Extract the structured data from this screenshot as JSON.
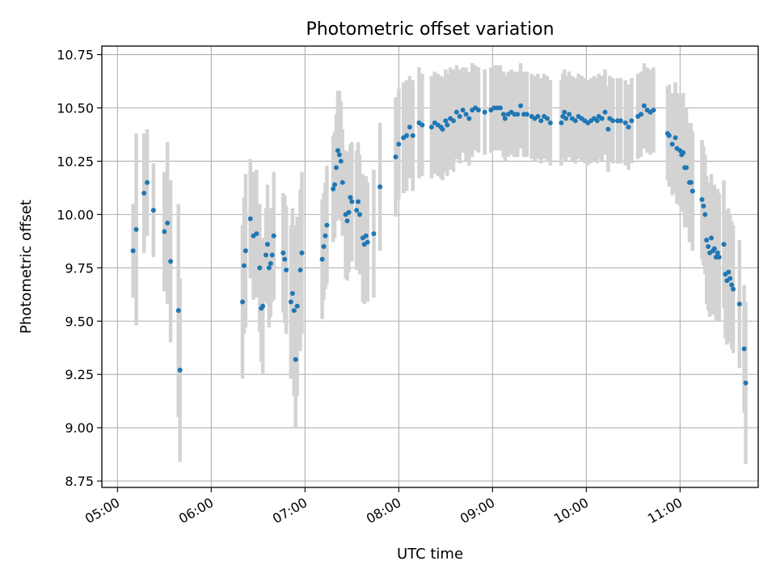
{
  "chart_data": {
    "type": "scatter",
    "title": "Photometric offset variation",
    "xlabel": "UTC time",
    "ylabel": "Photometric offset",
    "xlim": [
      "04:50",
      "11:50"
    ],
    "ylim": [
      8.72,
      10.79
    ],
    "x_ticks": [
      "05:00",
      "06:00",
      "07:00",
      "08:00",
      "09:00",
      "10:00",
      "11:00"
    ],
    "y_ticks": [
      "8.75",
      "9.00",
      "9.25",
      "9.50",
      "9.75",
      "10.00",
      "10.25",
      "10.50",
      "10.75"
    ],
    "grid": true,
    "colors": {
      "points": "#1f77b4",
      "error_bars": "#d3d3d3",
      "grid": "#b0b0b0"
    },
    "series": [
      {
        "points": [
          [
            "05:10",
            9.83,
            0.22
          ],
          [
            "05:12",
            9.93,
            0.45
          ],
          [
            "05:17",
            10.1,
            0.28
          ],
          [
            "05:19",
            10.15,
            0.25
          ],
          [
            "05:23",
            10.02,
            0.22
          ],
          [
            "05:30",
            9.92,
            0.28
          ],
          [
            "05:32",
            9.96,
            0.38
          ],
          [
            "05:34",
            9.78,
            0.38
          ],
          [
            "05:39",
            9.55,
            0.5
          ],
          [
            "05:40",
            9.27,
            0.43
          ],
          [
            "06:20",
            9.59,
            0.36
          ],
          [
            "06:21",
            9.76,
            0.32
          ],
          [
            "06:22",
            9.83,
            0.36
          ],
          [
            "06:25",
            9.98,
            0.28
          ],
          [
            "06:27",
            9.9,
            0.3
          ],
          [
            "06:29",
            9.91,
            0.3
          ],
          [
            "06:31",
            9.75,
            0.3
          ],
          [
            "06:32",
            9.56,
            0.25
          ],
          [
            "06:33",
            9.57,
            0.32
          ],
          [
            "06:35",
            9.81,
            0.22
          ],
          [
            "06:36",
            9.86,
            0.28
          ],
          [
            "06:37",
            9.75,
            0.28
          ],
          [
            "06:38",
            9.77,
            0.25
          ],
          [
            "06:39",
            9.81,
            0.22
          ],
          [
            "06:40",
            9.9,
            0.3
          ],
          [
            "06:46",
            9.82,
            0.28
          ],
          [
            "06:47",
            9.79,
            0.3
          ],
          [
            "06:48",
            9.74,
            0.3
          ],
          [
            "06:51",
            9.59,
            0.36
          ],
          [
            "06:52",
            9.63,
            0.4
          ],
          [
            "06:53",
            9.55,
            0.4
          ],
          [
            "06:54",
            9.32,
            0.32
          ],
          [
            "06:55",
            9.57,
            0.42
          ],
          [
            "06:57",
            9.74,
            0.38
          ],
          [
            "06:58",
            9.82,
            0.38
          ],
          [
            "07:11",
            9.79,
            0.28
          ],
          [
            "07:12",
            9.85,
            0.25
          ],
          [
            "07:13",
            9.9,
            0.25
          ],
          [
            "07:14",
            9.95,
            0.28
          ],
          [
            "07:18",
            10.12,
            0.25
          ],
          [
            "07:19",
            10.14,
            0.25
          ],
          [
            "07:20",
            10.22,
            0.25
          ],
          [
            "07:21",
            10.3,
            0.28
          ],
          [
            "07:22",
            10.28,
            0.3
          ],
          [
            "07:23",
            10.25,
            0.28
          ],
          [
            "07:24",
            10.15,
            0.25
          ],
          [
            "07:26",
            10.0,
            0.3
          ],
          [
            "07:27",
            9.97,
            0.28
          ],
          [
            "07:28",
            10.01,
            0.28
          ],
          [
            "07:29",
            10.08,
            0.25
          ],
          [
            "07:30",
            10.06,
            0.28
          ],
          [
            "07:33",
            10.02,
            0.28
          ],
          [
            "07:34",
            10.06,
            0.28
          ],
          [
            "07:35",
            10.0,
            0.28
          ],
          [
            "07:37",
            9.89,
            0.3
          ],
          [
            "07:38",
            9.86,
            0.28
          ],
          [
            "07:39",
            9.9,
            0.28
          ],
          [
            "07:40",
            9.87,
            0.28
          ],
          [
            "07:44",
            9.91,
            0.3
          ],
          [
            "07:48",
            10.13,
            0.3
          ],
          [
            "07:58",
            10.27,
            0.28
          ],
          [
            "08:00",
            10.33,
            0.26
          ],
          [
            "08:03",
            10.36,
            0.26
          ],
          [
            "08:05",
            10.37,
            0.26
          ],
          [
            "08:07",
            10.41,
            0.24
          ],
          [
            "08:09",
            10.37,
            0.26
          ],
          [
            "08:13",
            10.43,
            0.26
          ],
          [
            "08:15",
            10.42,
            0.24
          ],
          [
            "08:21",
            10.41,
            0.24
          ],
          [
            "08:23",
            10.43,
            0.24
          ],
          [
            "08:25",
            10.42,
            0.24
          ],
          [
            "08:27",
            10.41,
            0.24
          ],
          [
            "08:28",
            10.4,
            0.24
          ],
          [
            "08:30",
            10.44,
            0.24
          ],
          [
            "08:31",
            10.42,
            0.24
          ],
          [
            "08:33",
            10.45,
            0.24
          ],
          [
            "08:35",
            10.44,
            0.24
          ],
          [
            "08:37",
            10.48,
            0.22
          ],
          [
            "08:39",
            10.46,
            0.22
          ],
          [
            "08:41",
            10.49,
            0.2
          ],
          [
            "08:43",
            10.47,
            0.22
          ],
          [
            "08:45",
            10.45,
            0.22
          ],
          [
            "08:47",
            10.49,
            0.22
          ],
          [
            "08:49",
            10.5,
            0.2
          ],
          [
            "08:51",
            10.49,
            0.2
          ],
          [
            "08:55",
            10.48,
            0.2
          ],
          [
            "08:59",
            10.49,
            0.2
          ],
          [
            "09:01",
            10.5,
            0.2
          ],
          [
            "09:03",
            10.5,
            0.2
          ],
          [
            "09:05",
            10.5,
            0.2
          ],
          [
            "09:07",
            10.47,
            0.2
          ],
          [
            "09:08",
            10.45,
            0.2
          ],
          [
            "09:10",
            10.47,
            0.2
          ],
          [
            "09:12",
            10.48,
            0.2
          ],
          [
            "09:14",
            10.47,
            0.2
          ],
          [
            "09:16",
            10.47,
            0.2
          ],
          [
            "09:18",
            10.51,
            0.2
          ],
          [
            "09:20",
            10.47,
            0.2
          ],
          [
            "09:22",
            10.47,
            0.2
          ],
          [
            "09:25",
            10.46,
            0.2
          ],
          [
            "09:27",
            10.45,
            0.2
          ],
          [
            "09:29",
            10.46,
            0.2
          ],
          [
            "09:31",
            10.44,
            0.2
          ],
          [
            "09:33",
            10.46,
            0.2
          ],
          [
            "09:35",
            10.45,
            0.2
          ],
          [
            "09:37",
            10.43,
            0.2
          ],
          [
            "09:44",
            10.43,
            0.2
          ],
          [
            "09:45",
            10.46,
            0.2
          ],
          [
            "09:46",
            10.48,
            0.2
          ],
          [
            "09:47",
            10.45,
            0.2
          ],
          [
            "09:49",
            10.47,
            0.2
          ],
          [
            "09:51",
            10.45,
            0.2
          ],
          [
            "09:53",
            10.44,
            0.2
          ],
          [
            "09:55",
            10.46,
            0.2
          ],
          [
            "09:57",
            10.45,
            0.2
          ],
          [
            "09:59",
            10.44,
            0.2
          ],
          [
            "10:01",
            10.43,
            0.2
          ],
          [
            "10:03",
            10.44,
            0.2
          ],
          [
            "10:05",
            10.45,
            0.2
          ],
          [
            "10:07",
            10.44,
            0.2
          ],
          [
            "10:08",
            10.46,
            0.2
          ],
          [
            "10:10",
            10.45,
            0.2
          ],
          [
            "10:12",
            10.48,
            0.2
          ],
          [
            "10:14",
            10.4,
            0.2
          ],
          [
            "10:15",
            10.45,
            0.2
          ],
          [
            "10:17",
            10.44,
            0.2
          ],
          [
            "10:20",
            10.44,
            0.2
          ],
          [
            "10:22",
            10.44,
            0.2
          ],
          [
            "10:25",
            10.43,
            0.2
          ],
          [
            "10:27",
            10.41,
            0.2
          ],
          [
            "10:29",
            10.44,
            0.2
          ],
          [
            "10:33",
            10.46,
            0.2
          ],
          [
            "10:35",
            10.47,
            0.2
          ],
          [
            "10:37",
            10.51,
            0.2
          ],
          [
            "10:39",
            10.49,
            0.2
          ],
          [
            "10:41",
            10.48,
            0.2
          ],
          [
            "10:43",
            10.49,
            0.2
          ],
          [
            "10:52",
            10.38,
            0.22
          ],
          [
            "10:53",
            10.37,
            0.24
          ],
          [
            "10:55",
            10.33,
            0.24
          ],
          [
            "10:57",
            10.36,
            0.26
          ],
          [
            "10:58",
            10.31,
            0.26
          ],
          [
            "11:00",
            10.3,
            0.26
          ],
          [
            "11:01",
            10.28,
            0.26
          ],
          [
            "11:02",
            10.29,
            0.28
          ],
          [
            "11:03",
            10.22,
            0.28
          ],
          [
            "11:04",
            10.22,
            0.28
          ],
          [
            "11:06",
            10.15,
            0.28
          ],
          [
            "11:07",
            10.15,
            0.28
          ],
          [
            "11:08",
            10.11,
            0.28
          ],
          [
            "11:14",
            10.07,
            0.28
          ],
          [
            "11:15",
            10.04,
            0.28
          ],
          [
            "11:16",
            10.0,
            0.28
          ],
          [
            "11:17",
            9.88,
            0.3
          ],
          [
            "11:18",
            9.85,
            0.3
          ],
          [
            "11:19",
            9.82,
            0.3
          ],
          [
            "11:20",
            9.89,
            0.3
          ],
          [
            "11:21",
            9.83,
            0.3
          ],
          [
            "11:22",
            9.84,
            0.3
          ],
          [
            "11:23",
            9.8,
            0.3
          ],
          [
            "11:24",
            9.82,
            0.3
          ],
          [
            "11:25",
            9.8,
            0.3
          ],
          [
            "11:28",
            9.86,
            0.3
          ],
          [
            "11:29",
            9.72,
            0.3
          ],
          [
            "11:30",
            9.69,
            0.3
          ],
          [
            "11:31",
            9.73,
            0.3
          ],
          [
            "11:32",
            9.7,
            0.3
          ],
          [
            "11:33",
            9.67,
            0.3
          ],
          [
            "11:34",
            9.65,
            0.3
          ],
          [
            "11:38",
            9.58,
            0.3
          ],
          [
            "11:41",
            9.37,
            0.3
          ],
          [
            "11:42",
            9.21,
            0.38
          ]
        ]
      }
    ]
  }
}
